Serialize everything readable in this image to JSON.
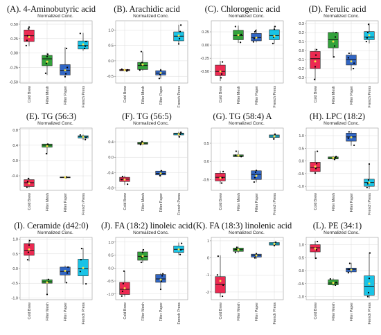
{
  "colors": {
    "cold_brew": "#ec2a52",
    "filter_mesh": "#33a23b",
    "filter_paper": "#3166c4",
    "french_press": "#19c3e6",
    "mean_marker": "#f4e34a",
    "points": "#000000",
    "grid": "#dcdcdc"
  },
  "chart_data": [
    {
      "type": "box",
      "title": "(A). 4-Aminobutyric acid",
      "subtitle": "Normalized Conc.",
      "categories": [
        "Cold Brew",
        "Filter Mesh",
        "Filter Paper",
        "French Press"
      ],
      "yticks": [
        -0.5,
        -0.25,
        0,
        0.25,
        0.5
      ],
      "ytick_labels": [
        "-0.50",
        "-0.25",
        "0.00",
        "0.25",
        "0.50"
      ],
      "ylim": [
        -0.52,
        0.56
      ],
      "boxes": [
        {
          "min": 0.12,
          "q1": 0.2,
          "median": 0.3,
          "q3": 0.4,
          "max": 0.46,
          "mean": 0.28,
          "points": [
            0.13,
            0.22,
            0.3,
            0.42,
            0.45
          ]
        },
        {
          "min": -0.38,
          "q1": -0.22,
          "median": -0.1,
          "q3": -0.04,
          "max": 0.0,
          "mean": -0.15,
          "points": [
            -0.35,
            -0.18,
            -0.06,
            -0.02
          ]
        },
        {
          "min": -0.42,
          "q1": -0.38,
          "median": -0.3,
          "q3": -0.2,
          "max": 0.1,
          "mean": -0.3,
          "points": [
            -0.41,
            -0.36,
            0.08,
            -0.25
          ]
        },
        {
          "min": 0.04,
          "q1": 0.07,
          "median": 0.13,
          "q3": 0.21,
          "max": 0.35,
          "mean": 0.15,
          "points": [
            0.08,
            0.12,
            0.2,
            0.34
          ]
        }
      ]
    },
    {
      "type": "box",
      "title": "(B). Arachidic acid",
      "subtitle": "Normalized Conc.",
      "categories": [
        "Cold Brew",
        "Filter Mesh",
        "Filter Paper",
        "French Press"
      ],
      "yticks": [
        -0.5,
        0,
        0.5,
        1.0
      ],
      "ytick_labels": [
        "-0.5",
        "0.0",
        "0.5",
        "1.0"
      ],
      "ylim": [
        -0.72,
        1.3
      ],
      "boxes": [
        {
          "min": -0.34,
          "q1": -0.32,
          "median": -0.3,
          "q3": -0.28,
          "max": -0.26,
          "mean": -0.3,
          "points": [
            -0.33,
            -0.29,
            -0.27
          ]
        },
        {
          "min": -0.32,
          "q1": -0.28,
          "median": -0.15,
          "q3": -0.05,
          "max": 0.3,
          "mean": -0.12,
          "points": [
            -0.3,
            -0.1,
            0.3,
            -0.05
          ]
        },
        {
          "min": -0.58,
          "q1": -0.46,
          "median": -0.4,
          "q3": -0.32,
          "max": -0.26,
          "mean": -0.39,
          "points": [
            -0.57,
            -0.45,
            -0.3
          ]
        },
        {
          "min": 0.52,
          "q1": 0.65,
          "median": 0.8,
          "q3": 0.94,
          "max": 1.17,
          "mean": 0.82,
          "points": [
            0.55,
            0.72,
            0.95,
            1.16
          ]
        }
      ]
    },
    {
      "type": "box",
      "title": "(C). Chlorogenic acid",
      "subtitle": "Normalized Conc.",
      "categories": [
        "Cold Brew",
        "Filter Mesh",
        "Filter Paper",
        "French Press"
      ],
      "yticks": [
        -0.5,
        -0.25,
        0,
        0.25
      ],
      "ytick_labels": [
        "-0.50",
        "-0.25",
        "0.00",
        "0.25"
      ],
      "ylim": [
        -0.72,
        0.46
      ],
      "boxes": [
        {
          "min": -0.68,
          "q1": -0.58,
          "median": -0.5,
          "q3": -0.38,
          "max": -0.3,
          "mean": -0.5,
          "points": [
            -0.62,
            -0.55,
            -0.32
          ]
        },
        {
          "min": 0.04,
          "q1": 0.1,
          "median": 0.18,
          "q3": 0.28,
          "max": 0.37,
          "mean": 0.19,
          "points": [
            0.05,
            0.2,
            0.35
          ]
        },
        {
          "min": 0.05,
          "q1": 0.08,
          "median": 0.14,
          "q3": 0.22,
          "max": 0.3,
          "mean": 0.14,
          "points": [
            0.06,
            0.12,
            0.25,
            0.27
          ]
        },
        {
          "min": 0.02,
          "q1": 0.1,
          "median": 0.18,
          "q3": 0.29,
          "max": 0.36,
          "mean": 0.17,
          "points": [
            0.03,
            0.15,
            0.3,
            0.35
          ]
        }
      ]
    },
    {
      "type": "box",
      "title": "(D). Ferulic acid",
      "subtitle": "Normalized Conc.",
      "categories": [
        "Cold Brew",
        "Filter Mesh",
        "Filter Paper",
        "French Press"
      ],
      "yticks": [
        -0.3,
        -0.2,
        -0.1,
        0.0,
        0.1,
        0.2,
        0.3
      ],
      "ytick_labels": [
        "-0.3",
        "-0.2",
        "-0.1",
        "0.0",
        "0.1",
        "0.2",
        "0.3"
      ],
      "ylim": [
        -0.36,
        0.33
      ],
      "boxes": [
        {
          "min": -0.33,
          "q1": -0.2,
          "median": -0.09,
          "q3": -0.01,
          "max": 0.02,
          "mean": -0.12,
          "points": [
            -0.32,
            -0.18,
            -0.05,
            0.01
          ]
        },
        {
          "min": -0.08,
          "q1": 0.03,
          "median": 0.12,
          "q3": 0.2,
          "max": 0.21,
          "mean": 0.1,
          "points": [
            -0.07,
            0.05,
            0.15,
            0.2
          ]
        },
        {
          "min": -0.22,
          "q1": -0.16,
          "median": -0.1,
          "q3": -0.05,
          "max": -0.02,
          "mean": -0.12,
          "points": [
            -0.2,
            -0.14,
            -0.08,
            -0.03
          ]
        },
        {
          "min": 0.08,
          "q1": 0.12,
          "median": 0.15,
          "q3": 0.21,
          "max": 0.3,
          "mean": 0.17,
          "points": [
            0.1,
            0.14,
            0.2,
            0.29
          ]
        }
      ]
    },
    {
      "type": "box",
      "title": "(E). TG (56:3)",
      "subtitle": "Normalized Conc.",
      "categories": [
        "Cold Brew",
        "Filter Mesh",
        "Filter Paper",
        "French Press"
      ],
      "yticks": [
        -0.4,
        0,
        0.4,
        0.8
      ],
      "ytick_labels": [
        "-0.4",
        "0.0",
        "0.4",
        "0.8"
      ],
      "ylim": [
        -0.78,
        0.85
      ],
      "boxes": [
        {
          "min": -0.72,
          "q1": -0.68,
          "median": -0.58,
          "q3": -0.5,
          "max": -0.46,
          "mean": -0.6,
          "points": [
            -0.7,
            -0.55,
            -0.47
          ]
        },
        {
          "min": 0.16,
          "q1": 0.35,
          "median": 0.4,
          "q3": 0.43,
          "max": 0.44,
          "mean": 0.38,
          "points": [
            0.18,
            0.4,
            0.43
          ]
        },
        {
          "min": -0.46,
          "q1": -0.45,
          "median": -0.44,
          "q3": -0.43,
          "max": -0.42,
          "mean": -0.44,
          "points": [
            -0.45,
            -0.43
          ]
        },
        {
          "min": 0.54,
          "q1": 0.59,
          "median": 0.62,
          "q3": 0.65,
          "max": 0.68,
          "mean": 0.62,
          "points": [
            0.55,
            0.6,
            0.67
          ]
        }
      ]
    },
    {
      "type": "box",
      "title": "(F). TG (56:5)",
      "subtitle": "Normalized Conc.",
      "categories": [
        "Cold Brew",
        "Filter Mesh",
        "Filter Paper",
        "French Press"
      ],
      "yticks": [
        -0.8,
        -0.4,
        0.0,
        0.4
      ],
      "ytick_labels": [
        "-0.8",
        "-0.4",
        "0.0",
        "0.4"
      ],
      "ylim": [
        -0.86,
        0.76
      ],
      "boxes": [
        {
          "min": -0.72,
          "q1": -0.63,
          "median": -0.57,
          "q3": -0.52,
          "max": -0.48,
          "mean": -0.58,
          "points": [
            -0.7,
            -0.58,
            -0.5
          ]
        },
        {
          "min": 0.32,
          "q1": 0.34,
          "median": 0.36,
          "q3": 0.39,
          "max": 0.42,
          "mean": 0.36,
          "points": [
            0.33,
            0.37,
            0.41
          ]
        },
        {
          "min": -0.5,
          "q1": -0.46,
          "median": -0.42,
          "q3": -0.36,
          "max": -0.34,
          "mean": -0.42,
          "points": [
            -0.48,
            -0.4,
            -0.35
          ]
        },
        {
          "min": 0.52,
          "q1": 0.58,
          "median": 0.61,
          "q3": 0.63,
          "max": 0.66,
          "mean": 0.6,
          "points": [
            0.53,
            0.6,
            0.65
          ]
        }
      ]
    },
    {
      "type": "box",
      "title": "(G). TG (58:4) A",
      "subtitle": "Normalized Conc.",
      "categories": [
        "Cold Brew",
        "Filter Mesh",
        "Filter Paper",
        "French Press"
      ],
      "yticks": [
        -0.5,
        0,
        0.5
      ],
      "ytick_labels": [
        "-0.5",
        "0.0",
        "0.5"
      ],
      "ylim": [
        -0.8,
        0.92
      ],
      "boxes": [
        {
          "min": -0.62,
          "q1": -0.54,
          "median": -0.44,
          "q3": -0.33,
          "max": -0.26,
          "mean": -0.46,
          "points": [
            -0.6,
            -0.45,
            -0.28
          ]
        },
        {
          "min": 0.12,
          "q1": 0.13,
          "median": 0.15,
          "q3": 0.18,
          "max": 0.3,
          "mean": 0.16,
          "points": [
            0.13,
            0.17,
            0.28
          ]
        },
        {
          "min": -0.58,
          "q1": -0.5,
          "median": -0.36,
          "q3": -0.26,
          "max": -0.24,
          "mean": -0.4,
          "points": [
            -0.57,
            -0.45,
            -0.3,
            -0.25
          ]
        },
        {
          "min": 0.6,
          "q1": 0.66,
          "median": 0.7,
          "q3": 0.73,
          "max": 0.76,
          "mean": 0.69,
          "points": [
            0.62,
            0.7,
            0.75
          ]
        }
      ]
    },
    {
      "type": "box",
      "title": "(H). LPC (18:2)",
      "subtitle": "Normalized Conc.",
      "categories": [
        "Cold Brew",
        "Filter Mesh",
        "Filter Paper",
        "French Press"
      ],
      "yticks": [
        -1.0,
        -0.5,
        0.0,
        0.5,
        1.0
      ],
      "ytick_labels": [
        "-1.0",
        "-0.5",
        "0.0",
        "0.5",
        "1.0"
      ],
      "ylim": [
        -1.16,
        1.3
      ],
      "boxes": [
        {
          "min": -0.5,
          "q1": -0.42,
          "median": -0.25,
          "q3": -0.05,
          "max": 0.4,
          "mean": -0.22,
          "points": [
            -0.48,
            -0.3,
            -0.1,
            0.38
          ]
        },
        {
          "min": 0.05,
          "q1": 0.08,
          "median": 0.12,
          "q3": 0.16,
          "max": 0.2,
          "mean": 0.12,
          "points": [
            0.06,
            0.13,
            0.18
          ]
        },
        {
          "min": 0.6,
          "q1": 0.78,
          "median": 0.95,
          "q3": 1.1,
          "max": 1.18,
          "mean": 0.93,
          "points": [
            0.62,
            0.9,
            1.15
          ]
        },
        {
          "min": -1.1,
          "q1": -1.0,
          "median": -0.85,
          "q3": -0.72,
          "max": -0.1,
          "mean": -0.86,
          "points": [
            -1.05,
            -0.9,
            -0.75,
            -0.12
          ]
        }
      ]
    },
    {
      "type": "box",
      "title": "(I). Ceramide (d42:0)",
      "subtitle": "Normalized Conc.",
      "categories": [
        "Cold Brew",
        "Filter Mesh",
        "Filter Paper",
        "French Press"
      ],
      "yticks": [
        -1.0,
        -0.5,
        0.0,
        0.5,
        1.0
      ],
      "ytick_labels": [
        "-1.0",
        "-0.5",
        "0.0",
        "0.5",
        "1.0"
      ],
      "ylim": [
        -1.06,
        1.06
      ],
      "boxes": [
        {
          "min": 0.25,
          "q1": 0.45,
          "median": 0.62,
          "q3": 0.85,
          "max": 0.98,
          "mean": 0.65,
          "points": [
            0.3,
            0.55,
            0.8,
            0.95
          ]
        },
        {
          "min": -0.9,
          "q1": -0.5,
          "median": -0.45,
          "q3": -0.38,
          "max": -0.35,
          "mean": -0.47,
          "points": [
            -0.88,
            -0.45,
            -0.37
          ]
        },
        {
          "min": -0.5,
          "q1": -0.22,
          "median": -0.1,
          "q3": 0.05,
          "max": 0.1,
          "mean": -0.08,
          "points": [
            -0.48,
            -0.15,
            0.05
          ]
        },
        {
          "min": -0.55,
          "q1": -0.25,
          "median": 0.0,
          "q3": 0.32,
          "max": 0.7,
          "mean": 0.02,
          "points": [
            -0.52,
            -0.1,
            0.3,
            0.68
          ]
        }
      ]
    },
    {
      "type": "box",
      "title": "(J). FA (18:2) linoleic acid",
      "subtitle": "Normalized Conc.",
      "categories": [
        "Cold Brew",
        "Filter Mesh",
        "Filter Paper",
        "French Press"
      ],
      "yticks": [
        -1.0,
        -0.5,
        0.0,
        0.5,
        1.0
      ],
      "ytick_labels": [
        "-1.0",
        "-0.5",
        "0.0",
        "0.5",
        "1.0"
      ],
      "ylim": [
        -1.22,
        1.18
      ],
      "boxes": [
        {
          "min": -1.1,
          "q1": -1.02,
          "median": -0.82,
          "q3": -0.55,
          "max": -0.1,
          "mean": -0.78,
          "points": [
            -1.08,
            -0.9,
            -0.6,
            -0.12
          ]
        },
        {
          "min": 0.2,
          "q1": 0.3,
          "median": 0.45,
          "q3": 0.62,
          "max": 0.72,
          "mean": 0.46,
          "points": [
            0.22,
            0.4,
            0.6,
            0.7
          ]
        },
        {
          "min": -0.85,
          "q1": -0.55,
          "median": -0.42,
          "q3": -0.25,
          "max": -0.2,
          "mean": -0.45,
          "points": [
            -0.82,
            -0.5,
            -0.3,
            -0.22
          ]
        },
        {
          "min": 0.5,
          "q1": 0.6,
          "median": 0.72,
          "q3": 0.85,
          "max": 0.98,
          "mean": 0.72,
          "points": [
            0.52,
            0.7,
            0.95
          ]
        }
      ]
    },
    {
      "type": "box",
      "title": "(K). FA (18:3) linolenic acid",
      "subtitle": "Normalized Conc.",
      "categories": [
        "Cold Brew",
        "Filter Mesh",
        "Filter Paper",
        "French Press"
      ],
      "yticks": [
        -2,
        -1,
        0,
        1
      ],
      "ytick_labels": [
        "-2",
        "-1",
        "0",
        "1"
      ],
      "ylim": [
        -2.45,
        1.2
      ],
      "boxes": [
        {
          "min": -2.3,
          "q1": -2.05,
          "median": -1.55,
          "q3": -1.1,
          "max": 0.15,
          "mean": -1.35,
          "points": [
            -2.25,
            -1.6,
            -1.0,
            0.1
          ]
        },
        {
          "min": 0.3,
          "q1": 0.38,
          "median": 0.48,
          "q3": 0.58,
          "max": 0.65,
          "mean": 0.48,
          "points": [
            0.32,
            0.5,
            0.62
          ]
        },
        {
          "min": -0.05,
          "q1": 0.05,
          "median": 0.15,
          "q3": 0.22,
          "max": 0.3,
          "mean": 0.14,
          "points": [
            0.0,
            0.12,
            0.25
          ]
        },
        {
          "min": 0.7,
          "q1": 0.75,
          "median": 0.82,
          "q3": 0.9,
          "max": 0.95,
          "mean": 0.82,
          "points": [
            0.72,
            0.8,
            0.92
          ]
        }
      ]
    },
    {
      "type": "box",
      "title": "(L). PE (34:1)",
      "subtitle": "Normalized Conc.",
      "categories": [
        "Cold Brew",
        "Filter Mesh",
        "Filter Paper",
        "French Press"
      ],
      "yticks": [
        -1.0,
        -0.5,
        0.0,
        0.5,
        1.0
      ],
      "ytick_labels": [
        "-1.0",
        "-0.5",
        "0.0",
        "0.5",
        "1.0"
      ],
      "ylim": [
        -1.12,
        1.28
      ],
      "boxes": [
        {
          "min": 0.45,
          "q1": 0.72,
          "median": 0.88,
          "q3": 1.0,
          "max": 1.15,
          "mean": 0.85,
          "points": [
            0.48,
            0.8,
            1.12
          ]
        },
        {
          "min": -0.58,
          "q1": -0.55,
          "median": -0.48,
          "q3": -0.35,
          "max": -0.3,
          "mean": -0.47,
          "points": [
            -0.56,
            -0.45,
            -0.32
          ]
        },
        {
          "min": -0.1,
          "q1": -0.05,
          "median": 0.05,
          "q3": 0.1,
          "max": 0.3,
          "mean": 0.03,
          "points": [
            -0.08,
            0.05,
            0.28
          ]
        },
        {
          "min": -1.05,
          "q1": -0.95,
          "median": -0.6,
          "q3": -0.2,
          "max": 0.7,
          "mean": -0.5,
          "points": [
            -1.0,
            -0.85,
            -0.3,
            0.68
          ]
        }
      ]
    }
  ]
}
